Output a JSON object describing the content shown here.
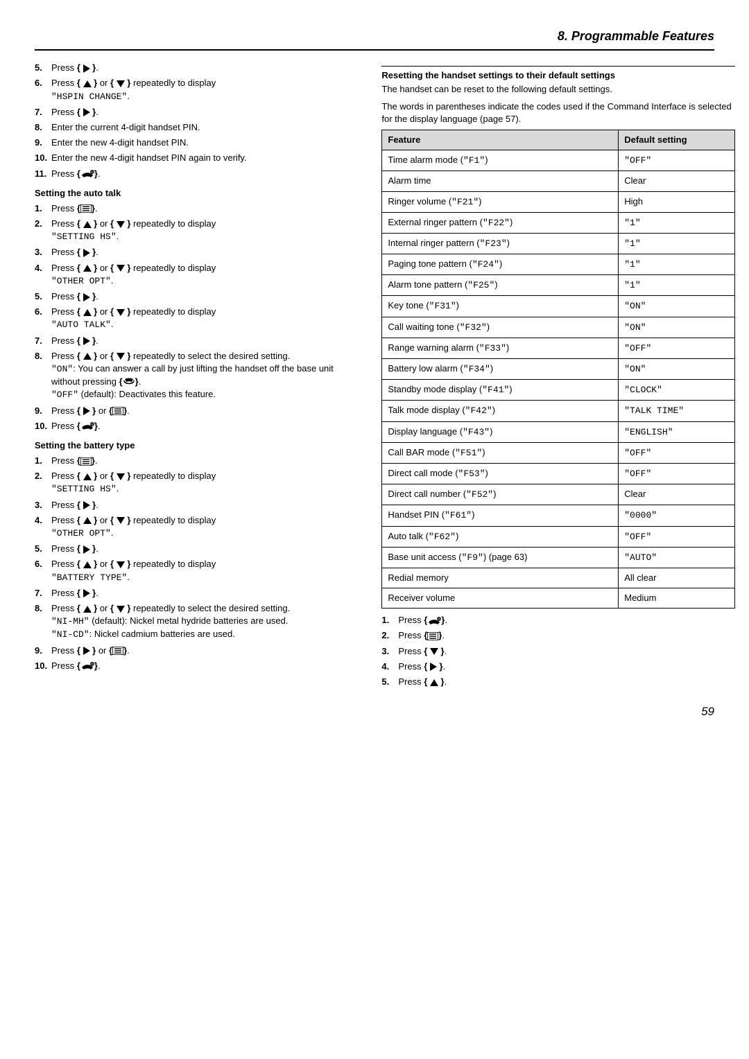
{
  "header": {
    "title": "8. Programmable Features"
  },
  "left": {
    "steps_a": [
      {
        "n": "5.",
        "text_before": "Press ",
        "icon": "right",
        "text_after": "."
      },
      {
        "n": "6.",
        "text_before": "Press ",
        "icon": "updown",
        "text_mid": " repeatedly to display ",
        "mono": "\"HSPIN CHANGE\"",
        "text_after": "."
      },
      {
        "n": "7.",
        "text_before": "Press ",
        "icon": "right",
        "text_after": "."
      },
      {
        "n": "8.",
        "plain": "Enter the current 4-digit handset PIN."
      },
      {
        "n": "9.",
        "plain": "Enter the new 4-digit handset PIN."
      },
      {
        "n": "10.",
        "plain": "Enter the new 4-digit handset PIN again to verify."
      },
      {
        "n": "11.",
        "text_before": "Press ",
        "icon": "hangup",
        "text_after": "."
      }
    ],
    "title_b": "Setting the auto talk",
    "steps_b": [
      {
        "n": "1.",
        "text_before": "Press ",
        "icon": "menu",
        "text_after": "."
      },
      {
        "n": "2.",
        "text_before": "Press ",
        "icon": "updown",
        "text_mid": " repeatedly to display ",
        "mono": "\"SETTING HS\"",
        "text_after": "."
      },
      {
        "n": "3.",
        "text_before": "Press ",
        "icon": "right",
        "text_after": "."
      },
      {
        "n": "4.",
        "text_before": "Press ",
        "icon": "updown",
        "text_mid": " repeatedly to display ",
        "mono": "\"OTHER OPT\"",
        "text_after": "."
      },
      {
        "n": "5.",
        "text_before": "Press ",
        "icon": "right",
        "text_after": "."
      },
      {
        "n": "6.",
        "text_before": "Press ",
        "icon": "updown",
        "text_mid": " repeatedly to display ",
        "mono": "\"AUTO TALK\"",
        "text_after": "."
      },
      {
        "n": "7.",
        "text_before": "Press ",
        "icon": "right",
        "text_after": "."
      },
      {
        "n": "8.",
        "text_before": "Press ",
        "icon": "updown",
        "text_mid": " repeatedly to select the desired setting.",
        "sub": [
          {
            "mono": "\"ON\"",
            "rest": ": You can answer a call by just lifting the handset off the base unit without pressing ",
            "icon": "talk",
            "after": "."
          },
          {
            "mono": "\"OFF\"",
            "rest": " (default): Deactivates this feature."
          }
        ]
      },
      {
        "n": "9.",
        "text_before": "Press ",
        "icon": "right-or-menu",
        "text_after": "."
      },
      {
        "n": "10.",
        "text_before": "Press ",
        "icon": "hangup",
        "text_after": "."
      }
    ],
    "title_c": "Setting the battery type",
    "steps_c": [
      {
        "n": "1.",
        "text_before": "Press ",
        "icon": "menu",
        "text_after": "."
      },
      {
        "n": "2.",
        "text_before": "Press ",
        "icon": "updown",
        "text_mid": " repeatedly to display ",
        "mono": "\"SETTING HS\"",
        "text_after": "."
      },
      {
        "n": "3.",
        "text_before": "Press ",
        "icon": "right",
        "text_after": "."
      },
      {
        "n": "4.",
        "text_before": "Press ",
        "icon": "updown",
        "text_mid": " repeatedly to display ",
        "mono": "\"OTHER OPT\"",
        "text_after": "."
      },
      {
        "n": "5.",
        "text_before": "Press ",
        "icon": "right",
        "text_after": "."
      },
      {
        "n": "6.",
        "text_before": "Press ",
        "icon": "updown",
        "text_mid": " repeatedly to display ",
        "mono": "\"BATTERY TYPE\"",
        "text_after": "."
      },
      {
        "n": "7.",
        "text_before": "Press ",
        "icon": "right",
        "text_after": "."
      },
      {
        "n": "8.",
        "text_before": "Press ",
        "icon": "updown",
        "text_mid": " repeatedly to select the desired setting.",
        "sub": [
          {
            "mono": "\"NI-MH\"",
            "rest": " (default): Nickel metal hydride batteries are used."
          },
          {
            "mono": "\"NI-CD\"",
            "rest": ": Nickel cadmium batteries are used."
          }
        ]
      },
      {
        "n": "9.",
        "text_before": "Press ",
        "icon": "right-or-menu",
        "text_after": "."
      },
      {
        "n": "10.",
        "text_before": "Press ",
        "icon": "hangup",
        "text_after": "."
      }
    ]
  },
  "right": {
    "reset_title": "Resetting the handset settings to their default settings",
    "reset_intro1": "The handset can be reset to the following default settings.",
    "reset_intro2": "The words in parentheses indicate the codes used if the Command Interface is selected for the display language (page 57).",
    "table": {
      "columns": [
        "Feature",
        "Default setting"
      ],
      "rows": [
        [
          {
            "t": "Time alarm mode (",
            "m": "\"F1\"",
            "t2": ")"
          },
          {
            "m": "\"OFF\""
          }
        ],
        [
          {
            "t": "Alarm time"
          },
          {
            "t": "Clear"
          }
        ],
        [
          {
            "t": "Ringer volume (",
            "m": "\"F21\"",
            "t2": ")"
          },
          {
            "t": "High"
          }
        ],
        [
          {
            "t": "External ringer pattern (",
            "m": "\"F22\"",
            "t2": ")"
          },
          {
            "m": "\"1\""
          }
        ],
        [
          {
            "t": "Internal ringer pattern (",
            "m": "\"F23\"",
            "t2": ")"
          },
          {
            "m": "\"1\""
          }
        ],
        [
          {
            "t": "Paging tone pattern (",
            "m": "\"F24\"",
            "t2": ")"
          },
          {
            "m": "\"1\""
          }
        ],
        [
          {
            "t": "Alarm tone pattern (",
            "m": "\"F25\"",
            "t2": ")"
          },
          {
            "m": "\"1\""
          }
        ],
        [
          {
            "t": "Key tone (",
            "m": "\"F31\"",
            "t2": ")"
          },
          {
            "m": "\"ON\""
          }
        ],
        [
          {
            "t": "Call waiting tone (",
            "m": "\"F32\"",
            "t2": ")"
          },
          {
            "m": "\"ON\""
          }
        ],
        [
          {
            "t": "Range warning alarm (",
            "m": "\"F33\"",
            "t2": ")"
          },
          {
            "m": "\"OFF\""
          }
        ],
        [
          {
            "t": "Battery low alarm (",
            "m": "\"F34\"",
            "t2": ")"
          },
          {
            "m": "\"ON\""
          }
        ],
        [
          {
            "t": "Standby mode display (",
            "m": "\"F41\"",
            "t2": ")"
          },
          {
            "m": "\"CLOCK\""
          }
        ],
        [
          {
            "t": "Talk mode display (",
            "m": "\"F42\"",
            "t2": ")"
          },
          {
            "m": "\"TALK TIME\""
          }
        ],
        [
          {
            "t": "Display language (",
            "m": "\"F43\"",
            "t2": ")"
          },
          {
            "m": "\"ENGLISH\""
          }
        ],
        [
          {
            "t": "Call BAR mode (",
            "m": "\"F51\"",
            "t2": ")"
          },
          {
            "m": "\"OFF\""
          }
        ],
        [
          {
            "t": "Direct call mode (",
            "m": "\"F53\"",
            "t2": ")"
          },
          {
            "m": "\"OFF\""
          }
        ],
        [
          {
            "t": "Direct call number (",
            "m": "\"F52\"",
            "t2": ")"
          },
          {
            "t": "Clear"
          }
        ],
        [
          {
            "t": "Handset PIN (",
            "m": "\"F61\"",
            "t2": ")"
          },
          {
            "m": "\"0000\""
          }
        ],
        [
          {
            "t": "Auto talk (",
            "m": "\"F62\"",
            "t2": ")"
          },
          {
            "m": "\"OFF\""
          }
        ],
        [
          {
            "t": "Base unit access (",
            "m": "\"F9\"",
            "t2": ") (page 63)"
          },
          {
            "m": "\"AUTO\""
          }
        ],
        [
          {
            "t": "Redial memory"
          },
          {
            "t": "All clear"
          }
        ],
        [
          {
            "t": "Receiver volume"
          },
          {
            "t": "Medium"
          }
        ]
      ]
    },
    "steps": [
      {
        "n": "1.",
        "icon": "hangup"
      },
      {
        "n": "2.",
        "icon": "menu"
      },
      {
        "n": "3.",
        "icon": "down"
      },
      {
        "n": "4.",
        "icon": "right"
      },
      {
        "n": "5.",
        "icon": "up"
      }
    ]
  },
  "page_number": "59"
}
